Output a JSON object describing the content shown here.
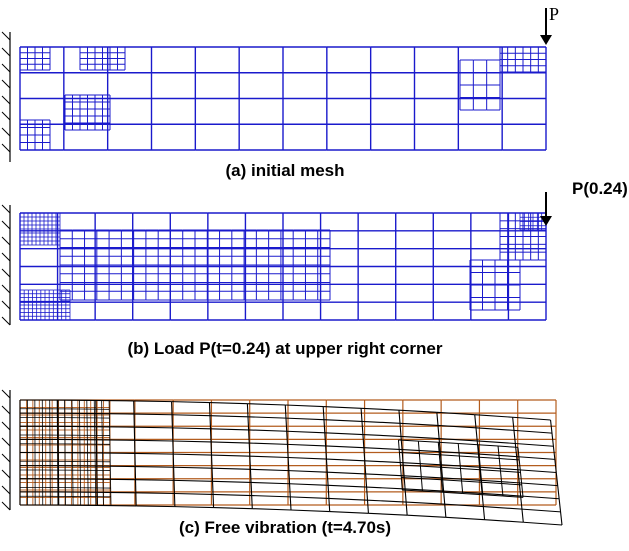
{
  "panels": [
    {
      "load_label": "P",
      "caption": "(a)  initial mesh"
    },
    {
      "load_label": "P(0.24)",
      "caption": "(b)  Load P(t=0.24) at upper right corner"
    },
    {
      "caption": "(c)  Free vibration (t=4.70s)"
    }
  ]
}
